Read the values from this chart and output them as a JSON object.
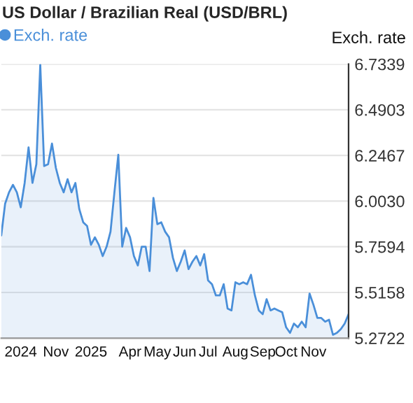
{
  "chart_data": {
    "type": "area",
    "title": "US Dollar / Brazilian Real (USD/BRL)",
    "ylabel": "Exch. rate",
    "categories": [
      null,
      null,
      null,
      null,
      null,
      "2024",
      null,
      null,
      null,
      null,
      null,
      null,
      null,
      null,
      "Nov",
      null,
      null,
      null,
      null,
      null,
      null,
      null,
      null,
      "2025",
      null,
      null,
      null,
      null,
      null,
      null,
      null,
      null,
      null,
      "Apr",
      null,
      null,
      null,
      null,
      null,
      null,
      "May",
      null,
      null,
      null,
      null,
      null,
      null,
      "Jun",
      null,
      null,
      null,
      null,
      null,
      "Jul",
      null,
      null,
      null,
      null,
      null,
      null,
      "Aug",
      null,
      null,
      null,
      null,
      null,
      null,
      "Sep",
      null,
      null,
      null,
      null,
      null,
      "Oct",
      null,
      null,
      null,
      null,
      null,
      null,
      "Nov",
      null,
      null,
      null,
      null,
      null,
      null,
      null,
      null,
      null
    ],
    "series": [
      {
        "name": "Exch. rate",
        "color": "#4a8fd9",
        "values": [
          5.82,
          5.99,
          6.05,
          6.09,
          6.05,
          5.97,
          6.1,
          6.29,
          6.1,
          6.2,
          6.73,
          6.19,
          6.2,
          6.31,
          6.18,
          6.1,
          6.05,
          6.12,
          6.05,
          6.1,
          5.96,
          5.89,
          5.87,
          5.77,
          5.81,
          5.77,
          5.71,
          5.76,
          5.84,
          6.05,
          6.25,
          5.76,
          5.86,
          5.81,
          5.71,
          5.66,
          5.76,
          5.76,
          5.63,
          6.02,
          5.88,
          5.89,
          5.84,
          5.81,
          5.7,
          5.63,
          5.68,
          5.74,
          5.64,
          5.68,
          5.71,
          5.66,
          5.72,
          5.58,
          5.56,
          5.5,
          5.5,
          5.56,
          5.43,
          5.42,
          5.57,
          5.56,
          5.57,
          5.56,
          5.61,
          5.5,
          5.42,
          5.4,
          5.48,
          5.42,
          5.43,
          5.42,
          5.41,
          5.33,
          5.3,
          5.35,
          5.33,
          5.36,
          5.33,
          5.51,
          5.45,
          5.38,
          5.38,
          5.36,
          5.37,
          5.29,
          5.3,
          5.32,
          5.35,
          5.4
        ]
      }
    ],
    "ylim": [
      5.2722,
      6.7339
    ],
    "yticks": [
      {
        "value": 5.2722,
        "label": "5.2722"
      },
      {
        "value": 5.5158,
        "label": "5.5158"
      },
      {
        "value": 5.7594,
        "label": "5.7594"
      },
      {
        "value": 6.003,
        "label": "6.0030"
      },
      {
        "value": 6.2467,
        "label": "6.2467"
      },
      {
        "value": 6.4903,
        "label": "6.4903"
      },
      {
        "value": 6.7339,
        "label": "6.7339"
      }
    ],
    "grid": "y",
    "legend": "top left"
  }
}
